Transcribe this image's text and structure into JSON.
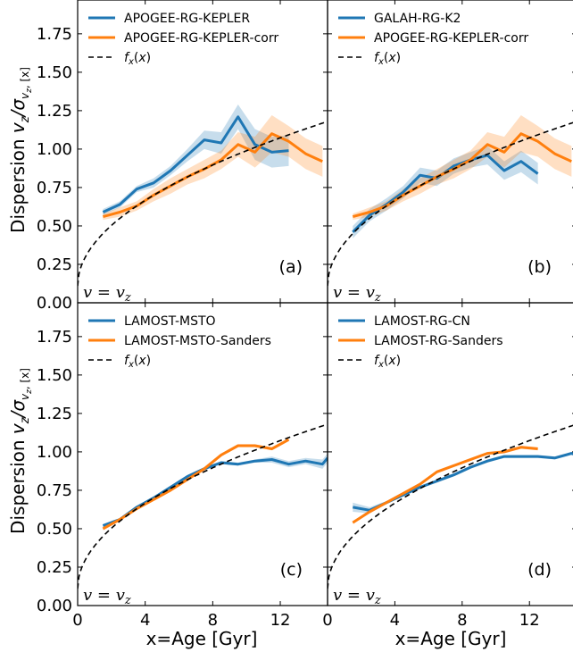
{
  "figure": {
    "ylabel_prefix": "Dispersion ",
    "ylabel_math": "v_z/σ_{v_z,[x]}",
    "xlabel": "x=Age [Gyr]",
    "xticks": [
      "0",
      "4",
      "8",
      "12"
    ],
    "yticks": [
      "0.00",
      "0.25",
      "0.50",
      "0.75",
      "1.00",
      "1.25",
      "1.50",
      "1.75"
    ]
  },
  "colors": {
    "blue": "#1f77b4",
    "orange": "#ff7f0e",
    "black": "#000000"
  },
  "chart_data": [
    {
      "type": "line",
      "panel_tag": "(a)",
      "annotation": "v = v_z",
      "xlim": [
        0,
        14.8
      ],
      "ylim": [
        0,
        1.97
      ],
      "series": [
        {
          "name": "APOGEE-RG-KEPLER",
          "color": "blue",
          "x": [
            1.5,
            2.5,
            3.5,
            4.5,
            5.5,
            6.5,
            7.5,
            8.5,
            9.5,
            10.5,
            11.5,
            12.5
          ],
          "y": [
            0.59,
            0.64,
            0.74,
            0.78,
            0.86,
            0.96,
            1.06,
            1.04,
            1.21,
            1.03,
            0.98,
            0.99
          ],
          "err": [
            0.02,
            0.02,
            0.02,
            0.03,
            0.03,
            0.04,
            0.06,
            0.07,
            0.08,
            0.1,
            0.1,
            0.1
          ]
        },
        {
          "name": "APOGEE-RG-KEPLER-corr",
          "color": "orange",
          "x": [
            1.5,
            2.5,
            3.5,
            4.5,
            5.5,
            6.5,
            7.5,
            8.5,
            9.5,
            10.5,
            11.5,
            12.5,
            13.5,
            14.5
          ],
          "y": [
            0.56,
            0.59,
            0.63,
            0.7,
            0.76,
            0.82,
            0.87,
            0.93,
            1.03,
            0.98,
            1.1,
            1.05,
            0.97,
            0.92
          ],
          "err": [
            0.02,
            0.03,
            0.03,
            0.04,
            0.05,
            0.05,
            0.06,
            0.06,
            0.08,
            0.1,
            0.12,
            0.1,
            0.1,
            0.1
          ]
        },
        {
          "name": "f_x(x)",
          "color": "black",
          "dashed": true,
          "func": "sqrt"
        }
      ]
    },
    {
      "type": "line",
      "panel_tag": "(b)",
      "annotation": "v = v_z",
      "xlim": [
        0,
        14.8
      ],
      "ylim": [
        0,
        1.97
      ],
      "series": [
        {
          "name": "GALAH-RG-K2",
          "color": "blue",
          "x": [
            1.5,
            2.5,
            3.5,
            4.5,
            5.5,
            6.5,
            7.5,
            8.5,
            9.5,
            10.5,
            11.5,
            12.5
          ],
          "y": [
            0.46,
            0.57,
            0.64,
            0.72,
            0.83,
            0.81,
            0.89,
            0.93,
            0.96,
            0.86,
            0.92,
            0.84
          ],
          "err": [
            0.04,
            0.04,
            0.04,
            0.04,
            0.05,
            0.05,
            0.05,
            0.05,
            0.06,
            0.06,
            0.07,
            0.07
          ]
        },
        {
          "name": "APOGEE-RG-KEPLER-corr",
          "color": "orange",
          "x": [
            1.5,
            2.5,
            3.5,
            4.5,
            5.5,
            6.5,
            7.5,
            8.5,
            9.5,
            10.5,
            11.5,
            12.5,
            13.5,
            14.5
          ],
          "y": [
            0.56,
            0.59,
            0.63,
            0.7,
            0.76,
            0.82,
            0.87,
            0.93,
            1.03,
            0.98,
            1.1,
            1.05,
            0.97,
            0.92
          ],
          "err": [
            0.02,
            0.03,
            0.03,
            0.04,
            0.05,
            0.05,
            0.06,
            0.06,
            0.08,
            0.1,
            0.12,
            0.1,
            0.1,
            0.1
          ]
        },
        {
          "name": "f_x(x)",
          "color": "black",
          "dashed": true,
          "func": "sqrt"
        }
      ]
    },
    {
      "type": "line",
      "panel_tag": "(c)",
      "annotation": "v = v_z",
      "xlim": [
        0,
        14.8
      ],
      "ylim": [
        0,
        1.97
      ],
      "series": [
        {
          "name": "LAMOST-MSTO",
          "color": "blue",
          "x": [
            1.5,
            2.5,
            3.5,
            4.5,
            5.5,
            6.5,
            7.5,
            8.5,
            9.5,
            10.5,
            11.5,
            12.5,
            13.5,
            14.5,
            14.8
          ],
          "y": [
            0.52,
            0.56,
            0.64,
            0.7,
            0.77,
            0.84,
            0.89,
            0.93,
            0.92,
            0.94,
            0.95,
            0.92,
            0.94,
            0.92,
            0.96
          ],
          "err": [
            0.01,
            0.01,
            0.01,
            0.01,
            0.01,
            0.01,
            0.01,
            0.01,
            0.01,
            0.01,
            0.02,
            0.02,
            0.02,
            0.03,
            0.03
          ]
        },
        {
          "name": "LAMOST-MSTO-Sanders",
          "color": "orange",
          "x": [
            1.5,
            2.5,
            3.5,
            4.5,
            5.5,
            6.5,
            7.5,
            8.5,
            9.5,
            10.5,
            11.5,
            12.5
          ],
          "y": [
            0.5,
            0.56,
            0.63,
            0.69,
            0.75,
            0.82,
            0.89,
            0.98,
            1.04,
            1.04,
            1.02,
            1.08
          ],
          "err": [
            0.01,
            0.01,
            0.01,
            0.01,
            0.01,
            0.01,
            0.01,
            0.01,
            0.01,
            0.01,
            0.01,
            0.01
          ]
        },
        {
          "name": "f_x(x)",
          "color": "black",
          "dashed": true,
          "func": "sqrt"
        }
      ]
    },
    {
      "type": "line",
      "panel_tag": "(d)",
      "annotation": "v = v_z",
      "xlim": [
        0,
        14.8
      ],
      "ylim": [
        0,
        1.97
      ],
      "series": [
        {
          "name": "LAMOST-RG-CN",
          "color": "blue",
          "x": [
            1.5,
            2.5,
            3.5,
            4.5,
            5.5,
            6.5,
            7.5,
            8.5,
            9.5,
            10.5,
            11.5,
            12.5,
            13.5,
            14.5,
            14.8
          ],
          "y": [
            0.64,
            0.62,
            0.67,
            0.72,
            0.77,
            0.81,
            0.85,
            0.9,
            0.94,
            0.97,
            0.97,
            0.97,
            0.96,
            0.99,
            0.98
          ],
          "err": [
            0.03,
            0.02,
            0.01,
            0.01,
            0.01,
            0.01,
            0.01,
            0.01,
            0.01,
            0.01,
            0.01,
            0.01,
            0.01,
            0.01,
            0.01
          ]
        },
        {
          "name": "LAMOST-RG-Sanders",
          "color": "orange",
          "x": [
            1.5,
            2.5,
            3.5,
            4.5,
            5.5,
            6.5,
            7.5,
            8.5,
            9.5,
            10.5,
            11.5,
            12.5
          ],
          "y": [
            0.54,
            0.61,
            0.67,
            0.73,
            0.79,
            0.87,
            0.91,
            0.95,
            0.99,
            1.0,
            1.03,
            1.02
          ],
          "err": [
            0.01,
            0.01,
            0.01,
            0.01,
            0.01,
            0.01,
            0.01,
            0.01,
            0.01,
            0.01,
            0.01,
            0.01
          ]
        },
        {
          "name": "f_x(x)",
          "color": "black",
          "dashed": true,
          "func": "sqrt"
        }
      ]
    }
  ]
}
